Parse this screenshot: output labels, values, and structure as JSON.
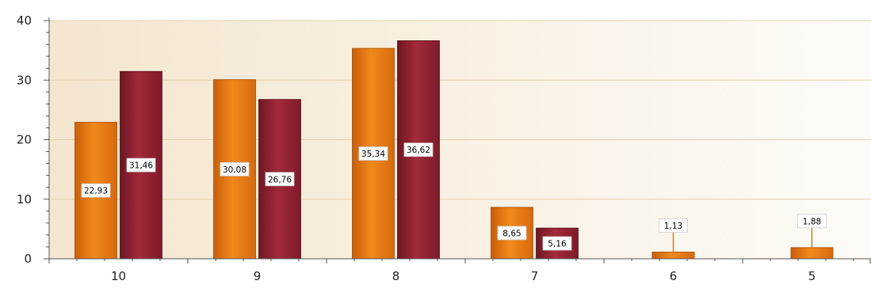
{
  "chart_data": {
    "type": "bar",
    "title": "",
    "xlabel": "",
    "ylabel": "",
    "categories": [
      "10",
      "9",
      "8",
      "7",
      "6",
      "5"
    ],
    "series": [
      {
        "color": "#e07410",
        "values": [
          22.93,
          30.08,
          35.34,
          8.65,
          1.13,
          1.88
        ],
        "labels": [
          "22,93",
          "30,08",
          "35,34",
          "8,65",
          "1,13",
          "1,88"
        ]
      },
      {
        "color": "#8b1f2e",
        "values": [
          31.46,
          26.76,
          36.62,
          5.16,
          null,
          null
        ],
        "labels": [
          "31,46",
          "26,76",
          "36,62",
          "5,16",
          null,
          null
        ]
      }
    ],
    "ylim": [
      0,
      40
    ],
    "yticks": [
      0,
      10,
      20,
      30,
      40
    ],
    "grid": true,
    "legend": "none",
    "background_gradient": [
      "#f4e6cf",
      "#fdfbf7"
    ]
  }
}
